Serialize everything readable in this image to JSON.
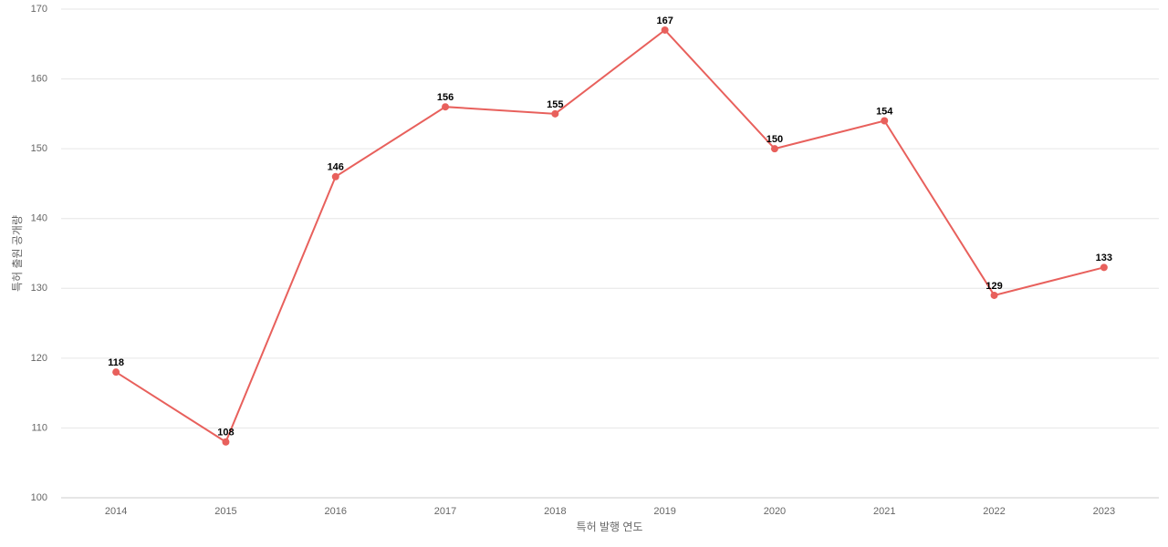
{
  "chart_data": {
    "type": "line",
    "x_label": "특허 발행 연도",
    "y_label": "특허 출원 공개량",
    "categories": [
      "2014",
      "2015",
      "2016",
      "2017",
      "2018",
      "2019",
      "2020",
      "2021",
      "2022",
      "2023"
    ],
    "series": [
      {
        "color": "#e8605c",
        "values": [
          118,
          108,
          146,
          156,
          155,
          167,
          150,
          154,
          129,
          133
        ]
      }
    ],
    "ylim": [
      100,
      170
    ],
    "yticks": [
      100,
      110,
      120,
      130,
      140,
      150,
      160,
      170
    ],
    "grid": true
  }
}
